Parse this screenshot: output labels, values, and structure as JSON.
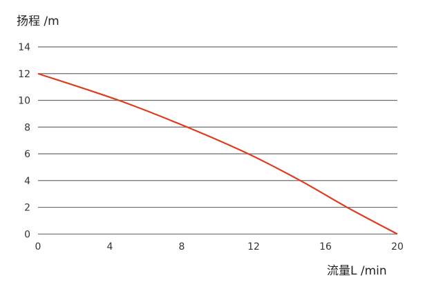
{
  "chart_data": {
    "type": "line",
    "title": "",
    "xlabel": "流量L /min",
    "ylabel": "扬程 /m",
    "xlim": [
      0,
      20
    ],
    "ylim": [
      0,
      14
    ],
    "xticks": [
      "0",
      "4",
      "8",
      "12",
      "16",
      "20"
    ],
    "yticks": [
      "0",
      "2",
      "4",
      "6",
      "8",
      "10",
      "12",
      "14"
    ],
    "grid": "horizontal",
    "series": [
      {
        "color": "#e0391c",
        "x": [
          0,
          4.5,
          8.3,
          11.7,
          14.6,
          17.2,
          20
        ],
        "y": [
          12,
          10,
          8,
          6,
          4,
          2,
          0
        ]
      }
    ]
  }
}
